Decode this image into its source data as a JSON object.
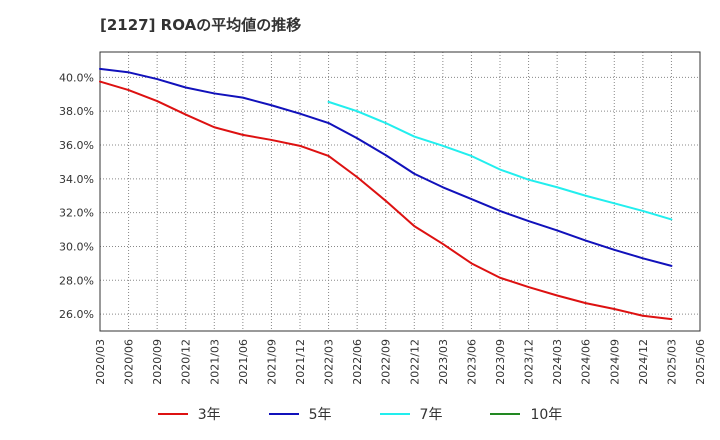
{
  "chart_data": {
    "type": "line",
    "title": "[2127]  ROAの平均値の推移",
    "xlabel": "",
    "ylabel": "",
    "ylim": [
      25.0,
      41.5
    ],
    "y_ticks": [
      26.0,
      28.0,
      30.0,
      32.0,
      34.0,
      36.0,
      38.0,
      40.0
    ],
    "y_tick_labels": [
      "26.0%",
      "28.0%",
      "30.0%",
      "32.0%",
      "34.0%",
      "36.0%",
      "38.0%",
      "40.0%"
    ],
    "x": [
      "2020/03",
      "2020/06",
      "2020/09",
      "2020/12",
      "2021/03",
      "2021/06",
      "2021/09",
      "2021/12",
      "2022/03",
      "2022/06",
      "2022/09",
      "2022/12",
      "2023/03",
      "2023/06",
      "2023/09",
      "2023/12",
      "2024/03",
      "2024/06",
      "2024/09",
      "2024/12",
      "2025/03",
      "2025/06"
    ],
    "grid": true,
    "legend_position": "bottom",
    "series": [
      {
        "name": "3年",
        "color": "#dd1111",
        "values": [
          39.75,
          39.25,
          38.6,
          37.8,
          37.05,
          36.6,
          36.3,
          35.95,
          35.35,
          34.1,
          32.7,
          31.2,
          30.15,
          29.0,
          28.15,
          27.6,
          27.1,
          26.65,
          26.3,
          25.9,
          25.7,
          null
        ]
      },
      {
        "name": "5年",
        "color": "#1111bb",
        "values": [
          40.5,
          40.3,
          39.9,
          39.4,
          39.05,
          38.8,
          38.35,
          37.85,
          37.3,
          36.4,
          35.4,
          34.3,
          33.5,
          32.8,
          32.1,
          31.5,
          30.95,
          30.35,
          29.8,
          29.3,
          28.85,
          null
        ]
      },
      {
        "name": "7年",
        "color": "#22eeee",
        "values": [
          null,
          null,
          null,
          null,
          null,
          null,
          null,
          null,
          38.55,
          38.0,
          37.3,
          36.5,
          35.95,
          35.35,
          34.55,
          33.95,
          33.5,
          33.0,
          32.55,
          32.1,
          31.6,
          null
        ]
      },
      {
        "name": "10年",
        "color": "#228822",
        "values": [
          null,
          null,
          null,
          null,
          null,
          null,
          null,
          null,
          null,
          null,
          null,
          null,
          null,
          null,
          null,
          null,
          null,
          null,
          null,
          null,
          null,
          null
        ]
      }
    ]
  }
}
